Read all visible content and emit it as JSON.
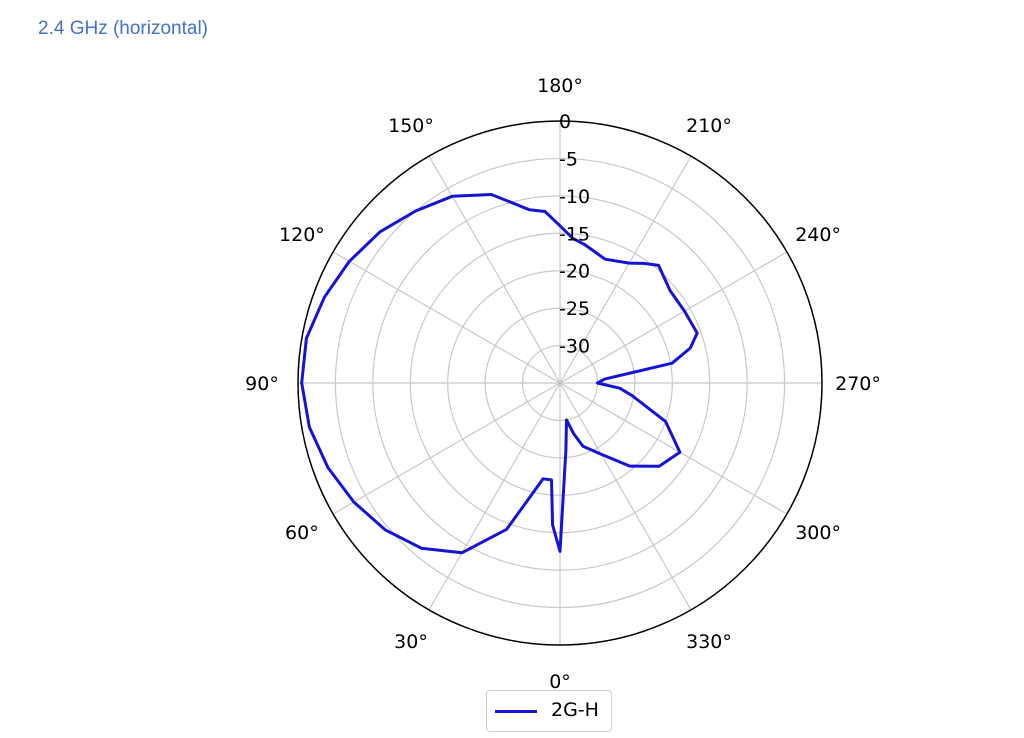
{
  "heading": "2.4 GHz (horizontal)",
  "chart_data": {
    "type": "polar-line",
    "angle_unit": "degrees",
    "zero_direction": "bottom",
    "rotation": "counterclockwise",
    "angle_ticks": [
      0,
      30,
      60,
      90,
      120,
      150,
      180,
      210,
      240,
      270,
      300,
      330
    ],
    "angle_tick_labels": [
      "0°",
      "30°",
      "60°",
      "90°",
      "120°",
      "150°",
      "180°",
      "210°",
      "240°",
      "270°",
      "300°",
      "330°"
    ],
    "radial_ticks": [
      0,
      -5,
      -10,
      -15,
      -20,
      -25,
      -30
    ],
    "radial_tick_labels": [
      "0",
      "-5",
      "-10",
      "-15",
      "-20",
      "-25",
      "-30"
    ],
    "rlim": [
      -35,
      0
    ],
    "grid": true,
    "legend": {
      "placement": "bottom-center",
      "entries": [
        "2G-H"
      ]
    },
    "series": [
      {
        "name": "2G-H",
        "color": "#1414d2",
        "theta": [
          0,
          3,
          5,
          10,
          20,
          30,
          40,
          50,
          60,
          70,
          80,
          90,
          100,
          110,
          120,
          130,
          140,
          150,
          160,
          170,
          175,
          180,
          185,
          190,
          200,
          210,
          215,
          220,
          230,
          240,
          250,
          255,
          260,
          265,
          270,
          275,
          280,
          290,
          300,
          310,
          320,
          330,
          340,
          345,
          350,
          355,
          360
        ],
        "r": [
          -12.5,
          -16,
          -22,
          -22,
          -14.2,
          -8.8,
          -6.2,
          -4.5,
          -3.2,
          -2,
          -1,
          -0.5,
          -0.6,
          -1.5,
          -2.5,
          -3.6,
          -5,
          -6.2,
          -8.2,
          -11.5,
          -12,
          -14,
          -15.6,
          -16.2,
          -17.4,
          -16.5,
          -15.5,
          -14.5,
          -15.8,
          -15.8,
          -15.5,
          -17,
          -19.8,
          -29,
          -30,
          -27,
          -25.2,
          -20,
          -16.5,
          -17.7,
          -20.5,
          -24,
          -26,
          -28,
          -30,
          -26,
          -12.5
        ]
      }
    ]
  }
}
